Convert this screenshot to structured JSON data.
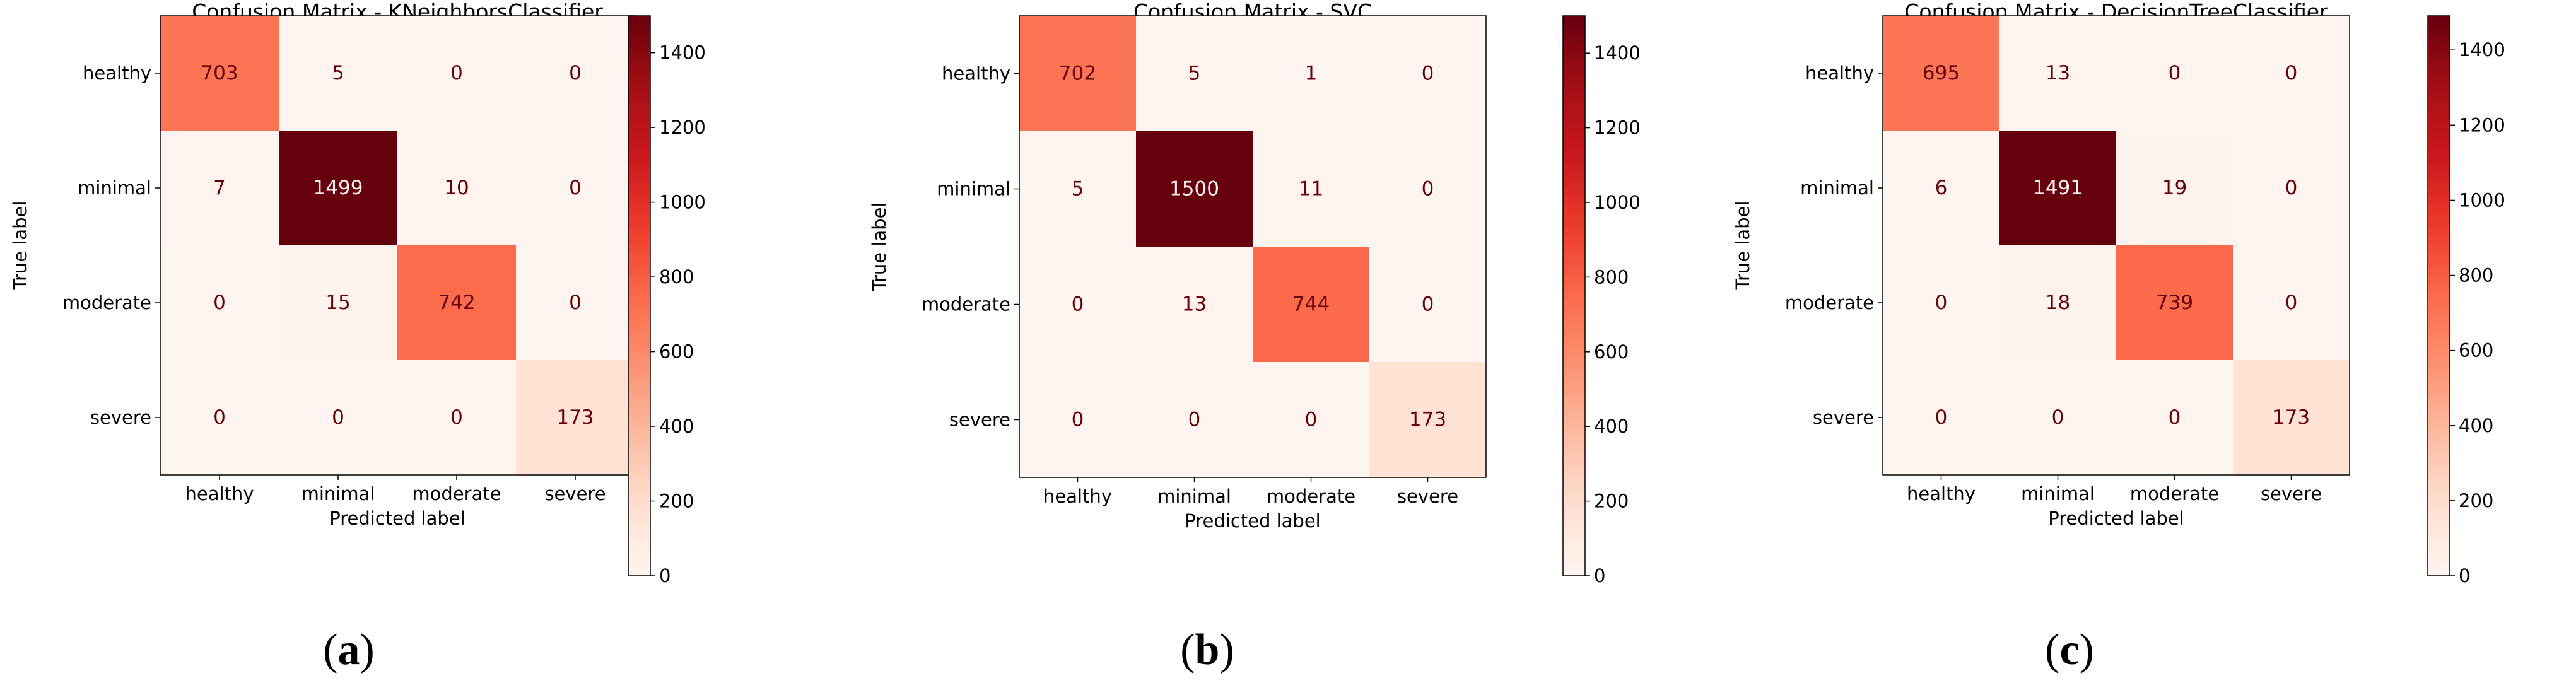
{
  "colors": {
    "cmap": [
      "#fff5f0",
      "#fee0d2",
      "#fcbba1",
      "#fc9272",
      "#fb6a4a",
      "#ef3b2c",
      "#cb181d",
      "#a50f15",
      "#67000d"
    ],
    "text_dark": "#67000d",
    "text_light": "#fff5f0"
  },
  "chart_data": [
    {
      "type": "heatmap",
      "title": "Confusion Matrix - KNeighborsClassifier",
      "xlabel": "Predicted label",
      "ylabel": "True label",
      "categories": [
        "healthy",
        "minimal",
        "moderate",
        "severe"
      ],
      "matrix": [
        [
          703,
          5,
          0,
          0
        ],
        [
          7,
          1499,
          10,
          0
        ],
        [
          0,
          15,
          742,
          0
        ],
        [
          0,
          0,
          0,
          173
        ]
      ],
      "vmin": 0,
      "vmax": 1499,
      "colorbar_ticks": [
        0,
        200,
        400,
        600,
        800,
        1000,
        1200,
        1400
      ],
      "caption": "a"
    },
    {
      "type": "heatmap",
      "title": "Confusion Matrix - SVC",
      "xlabel": "Predicted label",
      "ylabel": "True label",
      "categories": [
        "healthy",
        "minimal",
        "moderate",
        "severe"
      ],
      "matrix": [
        [
          702,
          5,
          1,
          0
        ],
        [
          5,
          1500,
          11,
          0
        ],
        [
          0,
          13,
          744,
          0
        ],
        [
          0,
          0,
          0,
          173
        ]
      ],
      "vmin": 0,
      "vmax": 1500,
      "colorbar_ticks": [
        0,
        200,
        400,
        600,
        800,
        1000,
        1200,
        1400
      ],
      "caption": "b"
    },
    {
      "type": "heatmap",
      "title": "Confusion Matrix - DecisionTreeClassifier",
      "xlabel": "Predicted label",
      "ylabel": "True label",
      "categories": [
        "healthy",
        "minimal",
        "moderate",
        "severe"
      ],
      "matrix": [
        [
          695,
          13,
          0,
          0
        ],
        [
          6,
          1491,
          19,
          0
        ],
        [
          0,
          18,
          739,
          0
        ],
        [
          0,
          0,
          0,
          173
        ]
      ],
      "vmin": 0,
      "vmax": 1491,
      "colorbar_ticks": [
        0,
        200,
        400,
        600,
        800,
        1000,
        1200,
        1400
      ],
      "caption": "c"
    }
  ]
}
